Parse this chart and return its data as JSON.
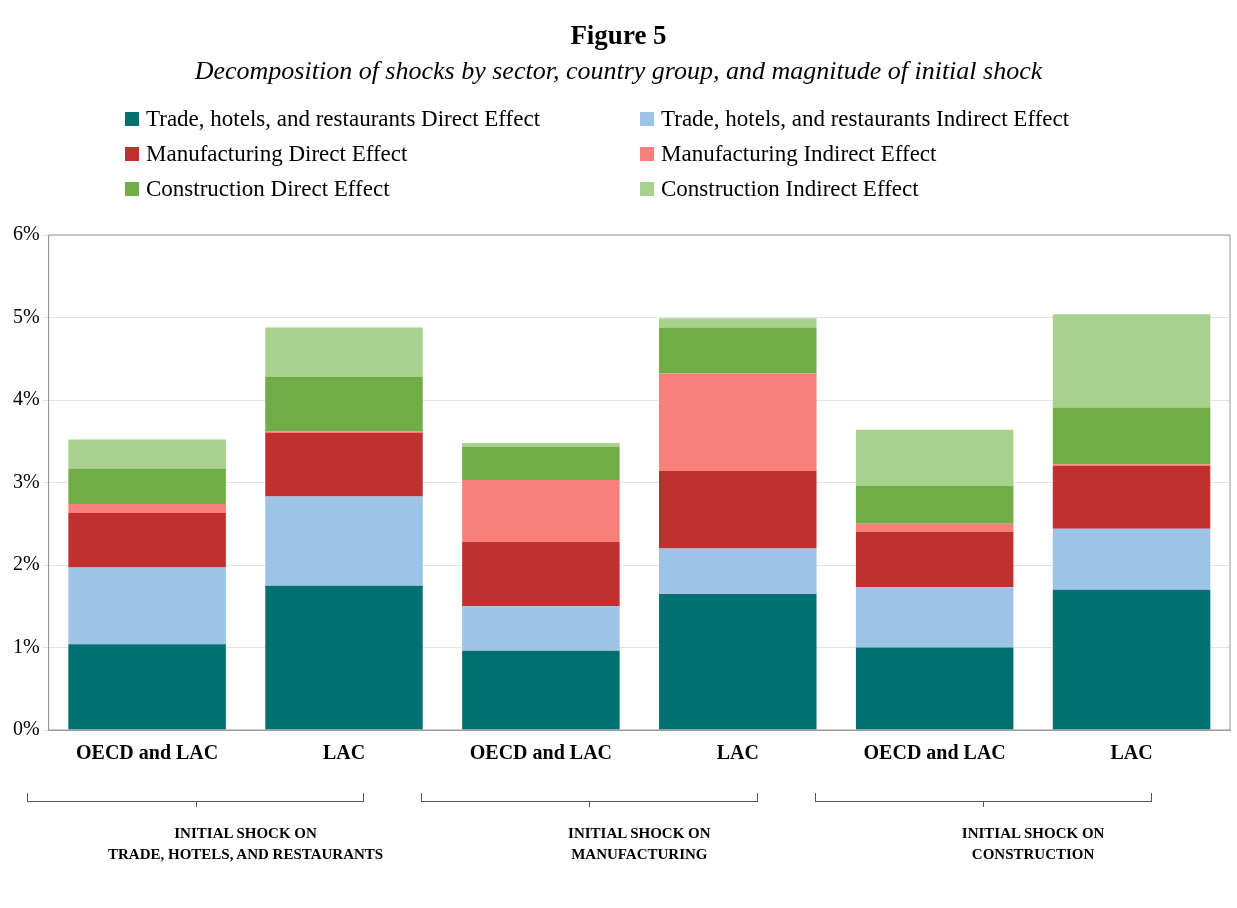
{
  "chart_data": {
    "type": "bar",
    "title": "Figure 5",
    "subtitle": "Decomposition of shocks by sector, country group, and magnitude of initial shock",
    "categories": [
      "OECD and LAC",
      "LAC",
      "OECD and LAC",
      "LAC",
      "OECD and LAC",
      "LAC"
    ],
    "series": [
      {
        "name": "Trade, hotels, and restaurants Direct Effect",
        "color": "#007070",
        "values": [
          1.04,
          1.75,
          0.96,
          1.65,
          1.0,
          1.7
        ]
      },
      {
        "name": "Trade, hotels, and restaurants Indirect Effect",
        "color": "#9dc3e6",
        "values": [
          0.93,
          1.08,
          0.54,
          0.55,
          0.73,
          0.74
        ]
      },
      {
        "name": "Manufacturing Direct Effect",
        "color": "#c0302e",
        "values": [
          0.66,
          0.77,
          0.78,
          0.94,
          0.67,
          0.76
        ]
      },
      {
        "name": "Manufacturing Indirect Effect",
        "color": "#f8807a",
        "values": [
          0.11,
          0.02,
          0.75,
          1.18,
          0.1,
          0.02
        ]
      },
      {
        "name": "Construction Direct Effect",
        "color": "#70ad47",
        "values": [
          0.43,
          0.66,
          0.4,
          0.56,
          0.46,
          0.69
        ]
      },
      {
        "name": "Construction Indirect Effect",
        "color": "#a9d18e",
        "values": [
          0.35,
          0.6,
          0.05,
          0.11,
          0.68,
          1.13
        ]
      }
    ],
    "stacked": true,
    "ylim": [
      0,
      6
    ],
    "yticks": [
      {
        "value": 0,
        "label": "0%"
      },
      {
        "value": 1,
        "label": "1%"
      },
      {
        "value": 2,
        "label": "2%"
      },
      {
        "value": 3,
        "label": "3%"
      },
      {
        "value": 4,
        "label": "4%"
      },
      {
        "value": 5,
        "label": "5%"
      },
      {
        "value": 6,
        "label": "6%"
      }
    ],
    "grid": "y",
    "legend": "top",
    "annotations": [
      "INITIAL SHOCK ON\nTRADE, HOTELS, AND RESTAURANTS",
      "INITIAL SHOCK ON\nMANUFACTURING",
      "INITIAL SHOCK ON\nCONSTRUCTION"
    ]
  }
}
